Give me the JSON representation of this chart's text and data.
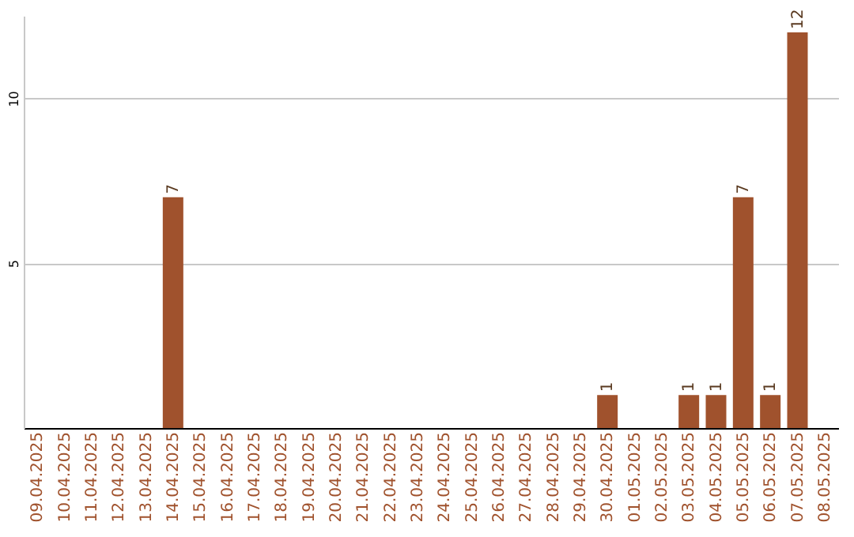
{
  "chart_data": {
    "type": "bar",
    "categories": [
      "09.04.2025",
      "10.04.2025",
      "11.04.2025",
      "12.04.2025",
      "13.04.2025",
      "14.04.2025",
      "15.04.2025",
      "16.04.2025",
      "17.04.2025",
      "18.04.2025",
      "19.04.2025",
      "20.04.2025",
      "21.04.2025",
      "22.04.2025",
      "23.04.2025",
      "24.04.2025",
      "25.04.2025",
      "26.04.2025",
      "27.04.2025",
      "28.04.2025",
      "29.04.2025",
      "30.04.2025",
      "01.05.2025",
      "02.05.2025",
      "03.05.2025",
      "04.05.2025",
      "05.05.2025",
      "06.05.2025",
      "07.05.2025",
      "08.05.2025"
    ],
    "values": [
      0,
      0,
      0,
      0,
      0,
      7,
      0,
      0,
      0,
      0,
      0,
      0,
      0,
      0,
      0,
      0,
      0,
      0,
      0,
      0,
      0,
      1,
      0,
      0,
      1,
      1,
      7,
      1,
      12,
      0
    ],
    "value_labels": [
      null,
      null,
      null,
      null,
      null,
      "7",
      null,
      null,
      null,
      null,
      null,
      null,
      null,
      null,
      null,
      null,
      null,
      null,
      null,
      null,
      null,
      "1",
      null,
      null,
      "1",
      "1",
      "7",
      "1",
      "12",
      null
    ],
    "color": "#a0522d",
    "ylim": [
      0,
      12.5
    ],
    "yticks": [
      5,
      10
    ],
    "grid": "y"
  }
}
